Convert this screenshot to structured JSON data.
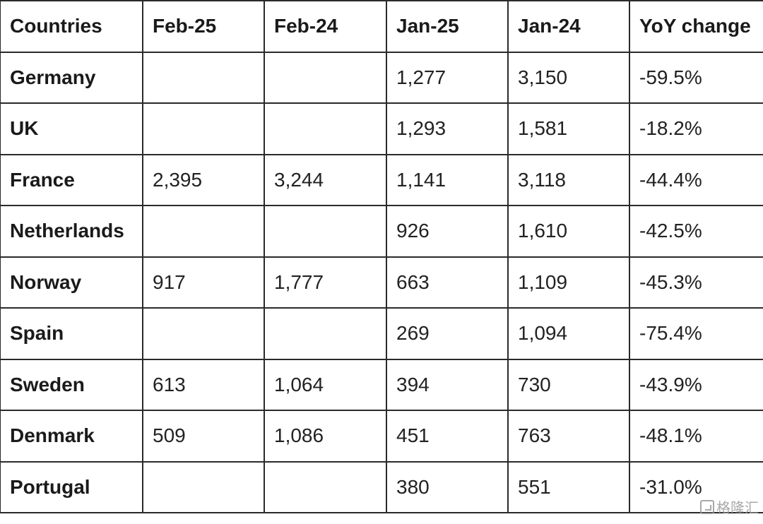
{
  "table": {
    "headers": [
      "Countries",
      "Feb-25",
      "Feb-24",
      "Jan-25",
      "Jan-24",
      "YoY change"
    ],
    "rows": [
      [
        "Germany",
        "",
        "",
        "1,277",
        "3,150",
        "-59.5%"
      ],
      [
        "UK",
        "",
        "",
        "1,293",
        "1,581",
        "-18.2%"
      ],
      [
        "France",
        "2,395",
        "3,244",
        "1,141",
        "3,118",
        "-44.4%"
      ],
      [
        "Netherlands",
        "",
        "",
        "926",
        "1,610",
        "-42.5%"
      ],
      [
        "Norway",
        "917",
        "1,777",
        "663",
        "1,109",
        "-45.3%"
      ],
      [
        "Spain",
        "",
        "",
        "269",
        "1,094",
        "-75.4%"
      ],
      [
        "Sweden",
        "613",
        "1,064",
        "394",
        "730",
        "-43.9%"
      ],
      [
        "Denmark",
        "509",
        "1,086",
        "451",
        "763",
        "-48.1%"
      ],
      [
        "Portugal",
        "",
        "",
        "380",
        "551",
        "-31.0%"
      ]
    ]
  },
  "watermark": {
    "text": "格隆汇",
    "icon": "gelonghui-logo-icon"
  }
}
